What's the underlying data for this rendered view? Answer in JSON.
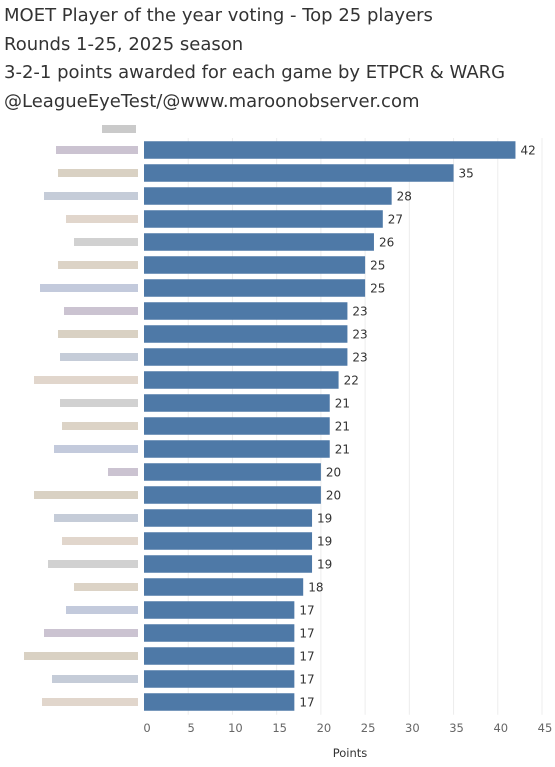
{
  "header": {
    "lines": [
      "MOET Player of the year voting - Top 25 players",
      "Rounds 1-25, 2025 season",
      "3-2-1 points awarded for each game by ETPCR & WARG",
      "@LeagueEyeTest/@www.maroonobserver.com"
    ]
  },
  "chart_data": {
    "type": "bar",
    "orientation": "horizontal",
    "xlabel": "Points",
    "xlim": [
      0,
      45
    ],
    "xticks": [
      0,
      5,
      10,
      15,
      20,
      25,
      30,
      35,
      40,
      45
    ],
    "grid": true,
    "values": [
      42,
      35,
      28,
      27,
      26,
      25,
      25,
      23,
      23,
      23,
      22,
      21,
      21,
      21,
      20,
      20,
      19,
      19,
      19,
      18,
      17,
      17,
      17,
      17,
      17
    ],
    "bar_color": "#4e79a7"
  }
}
